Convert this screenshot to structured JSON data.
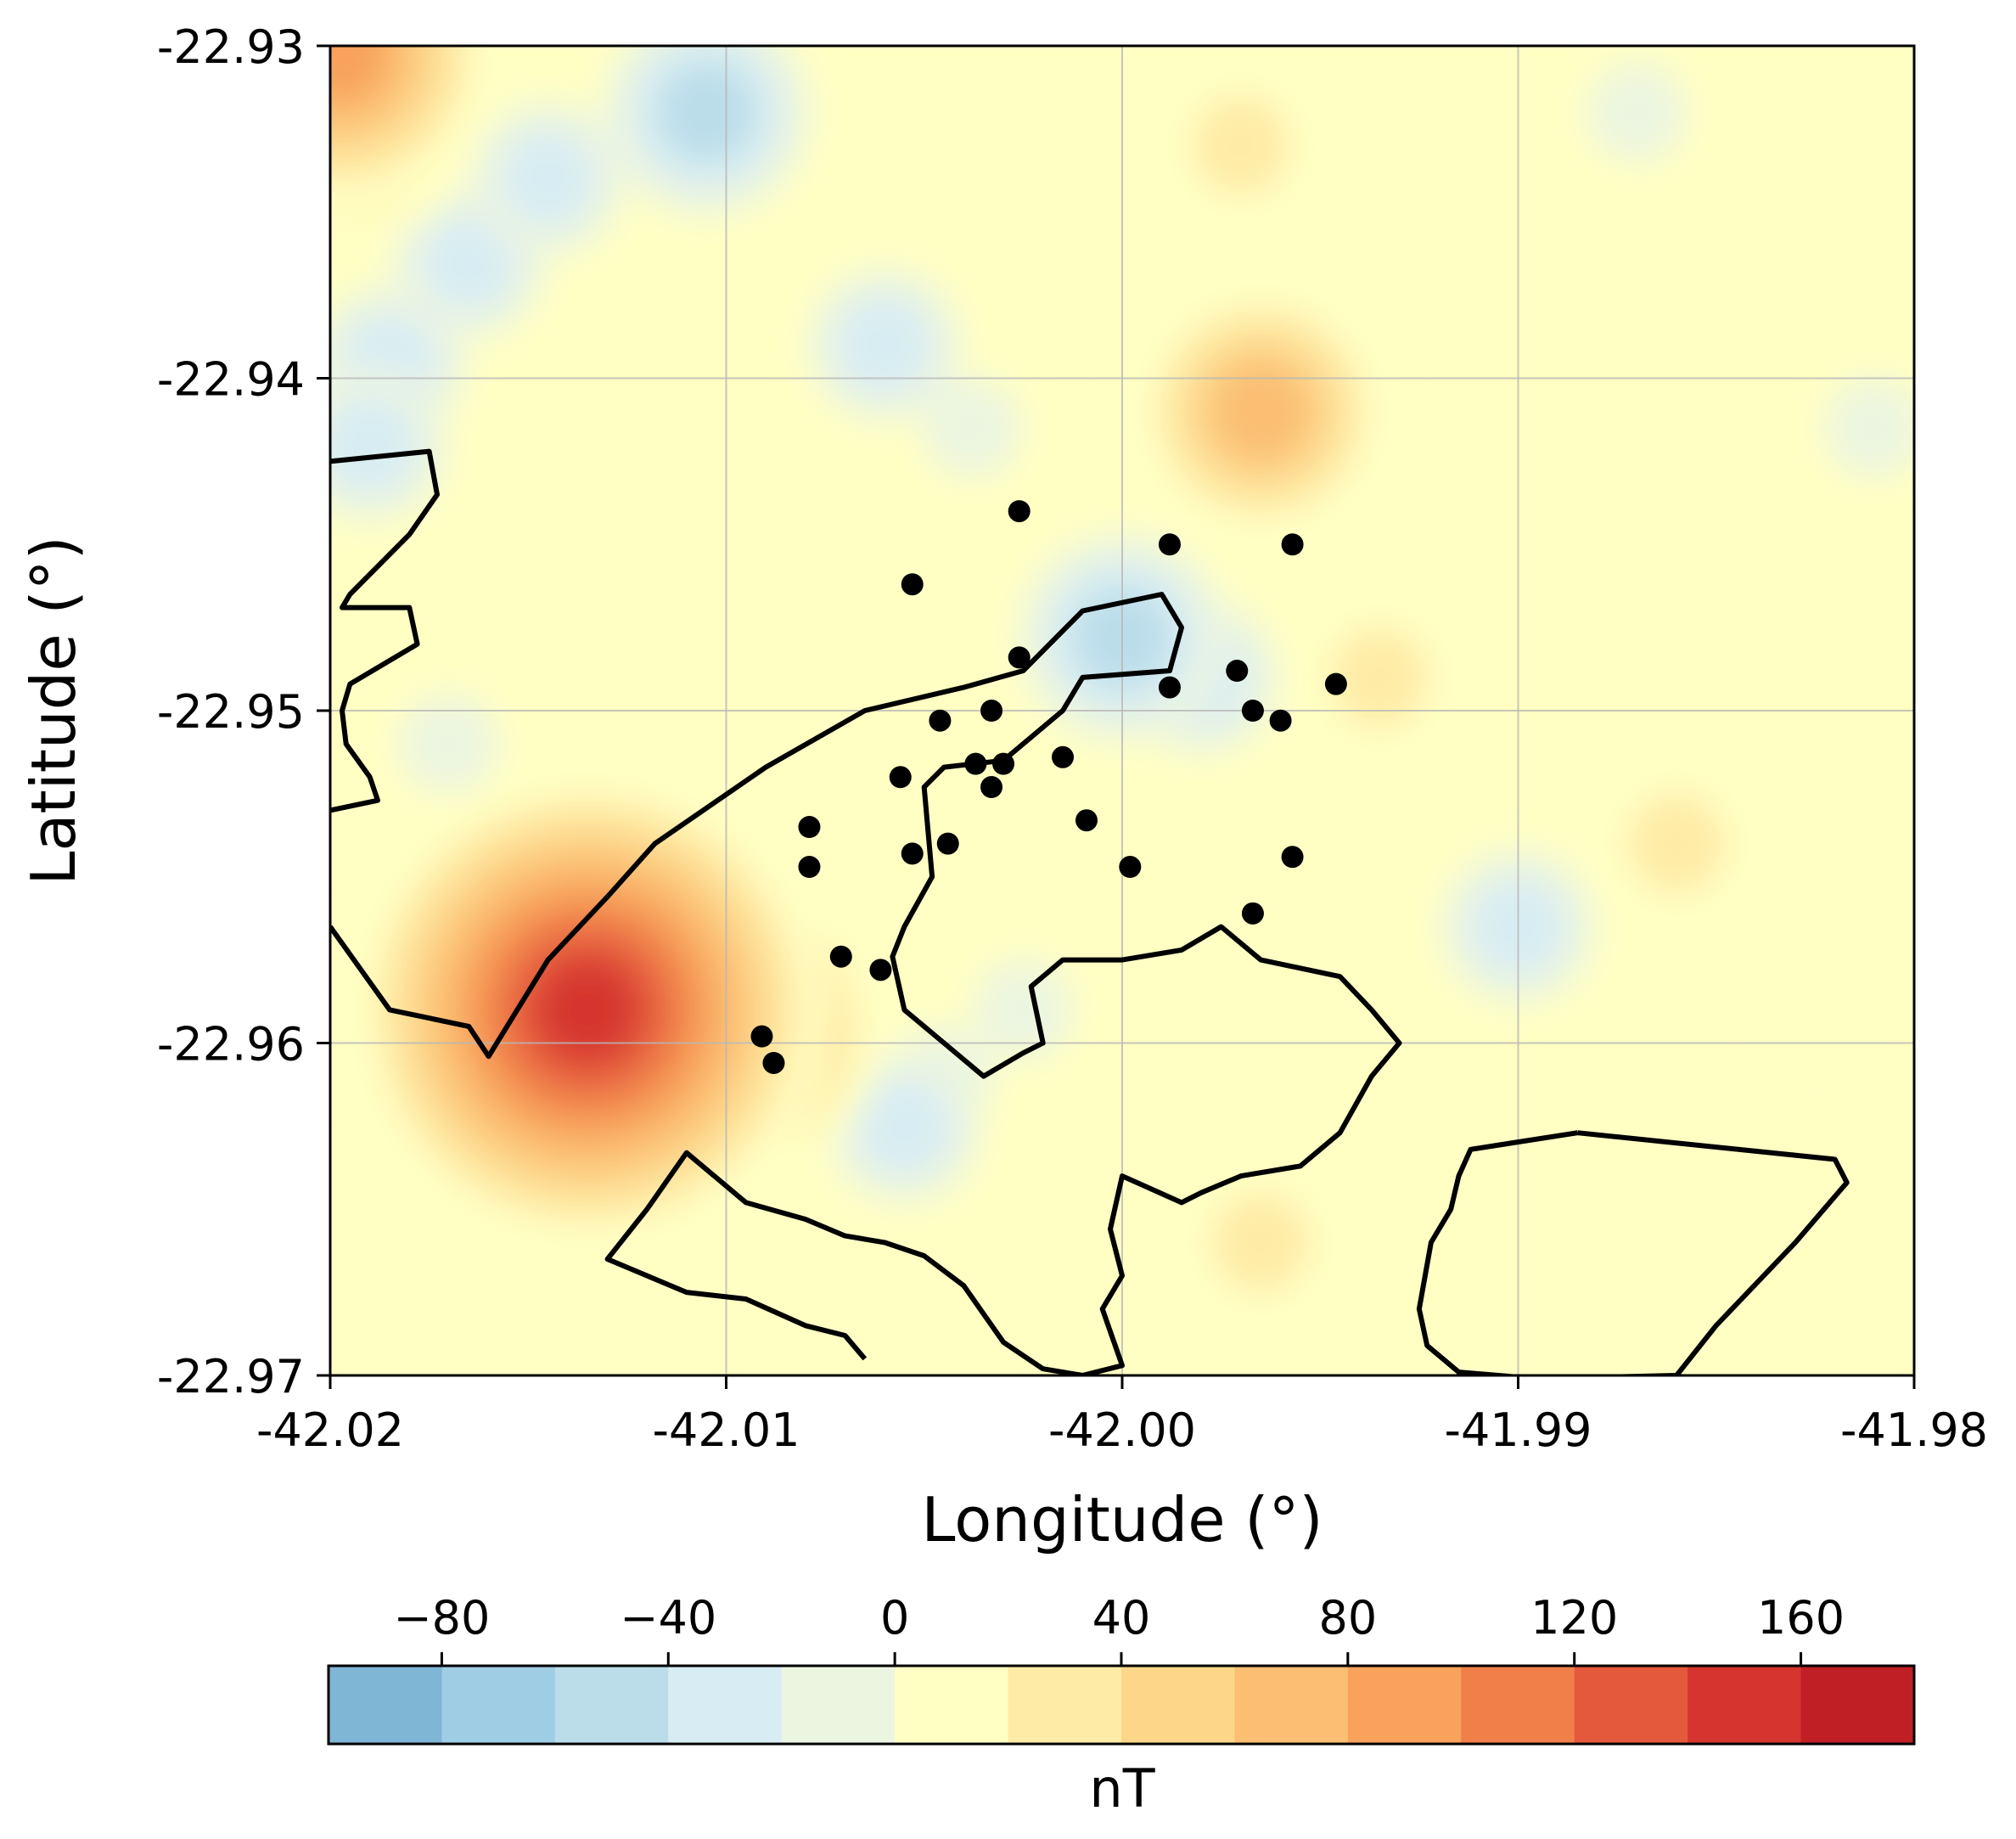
{
  "chart_data": {
    "type": "heatmap",
    "subtype": "filled-contour-map",
    "xlabel": "Longitude (°)",
    "ylabel": "Latitude (°)",
    "xlim": [
      -42.02,
      -41.98
    ],
    "ylim": [
      -22.97,
      -22.93
    ],
    "xticks": [
      -42.02,
      -42.01,
      -42.0,
      -41.99,
      -41.98
    ],
    "xtick_labels": [
      "-42.02",
      "-42.01",
      "-42.00",
      "-41.99",
      "-41.98"
    ],
    "yticks": [
      -22.93,
      -22.94,
      -22.95,
      -22.96,
      -22.97
    ],
    "ytick_labels": [
      "-22.93",
      "-22.94",
      "-22.95",
      "-22.96",
      "-22.97"
    ],
    "grid": true,
    "colorbar": {
      "label": "nT",
      "orientation": "horizontal",
      "placement": "bottom",
      "range": [
        -100,
        180
      ],
      "step": 20,
      "ticks": [
        -80,
        -40,
        0,
        40,
        80,
        120,
        160
      ],
      "tick_labels": [
        "−80",
        "−40",
        "0",
        "40",
        "80",
        "120",
        "160"
      ],
      "colors": [
        "#7fb5d5",
        "#9fcde3",
        "#badde9",
        "#d8edf3",
        "#ecf5e0",
        "#ffffc4",
        "#feeba6",
        "#fdd68a",
        "#fbbe72",
        "#f8a25c",
        "#f07f4a",
        "#e4593c",
        "#d5352e",
        "#c01f26"
      ]
    },
    "anomalies": [
      {
        "lon": -42.0198,
        "lat": -22.9302,
        "value": 110
      },
      {
        "lon": -42.0195,
        "lat": -22.932,
        "value": 80
      },
      {
        "lon": -42.0185,
        "lat": -22.9335,
        "value": 30
      },
      {
        "lon": -42.0135,
        "lat": -22.959,
        "value": 165
      },
      {
        "lon": -42.0118,
        "lat": -22.958,
        "value": 110
      },
      {
        "lon": -42.0143,
        "lat": -22.9565,
        "value": 60
      },
      {
        "lon": -42.017,
        "lat": -22.9575,
        "value": 35
      },
      {
        "lon": -42.01,
        "lat": -22.9595,
        "value": 100
      },
      {
        "lon": -42.0135,
        "lat": -22.964,
        "value": 25
      },
      {
        "lon": -41.9965,
        "lat": -22.941,
        "value": 80
      },
      {
        "lon": -41.9955,
        "lat": -22.939,
        "value": 50
      },
      {
        "lon": -41.997,
        "lat": -22.933,
        "value": 40
      },
      {
        "lon": -41.9935,
        "lat": -22.949,
        "value": 50
      },
      {
        "lon": -41.9965,
        "lat": -22.966,
        "value": 45
      },
      {
        "lon": -41.986,
        "lat": -22.954,
        "value": 40
      },
      {
        "lon": -41.9895,
        "lat": -22.9475,
        "value": 30
      },
      {
        "lon": -41.9825,
        "lat": -22.9615,
        "value": 25
      },
      {
        "lon": -42.011,
        "lat": -22.948,
        "value": 25
      },
      {
        "lon": -42.015,
        "lat": -22.967,
        "value": 25
      },
      {
        "lon": -41.995,
        "lat": -22.957,
        "value": 20
      },
      {
        "lon": -42.0145,
        "lat": -22.934,
        "value": -50
      },
      {
        "lon": -42.0105,
        "lat": -22.932,
        "value": -60
      },
      {
        "lon": -42.0165,
        "lat": -22.9365,
        "value": -45
      },
      {
        "lon": -42.0185,
        "lat": -22.9395,
        "value": -40
      },
      {
        "lon": -42.006,
        "lat": -22.939,
        "value": -45
      },
      {
        "lon": -42.0038,
        "lat": -22.9415,
        "value": -35
      },
      {
        "lon": -42.0,
        "lat": -22.9478,
        "value": -60
      },
      {
        "lon": -41.998,
        "lat": -22.949,
        "value": -40
      },
      {
        "lon": -42.017,
        "lat": -22.951,
        "value": -25
      },
      {
        "lon": -42.019,
        "lat": -22.942,
        "value": -45
      },
      {
        "lon": -42.0055,
        "lat": -22.9625,
        "value": -45
      },
      {
        "lon": -42.0045,
        "lat": -22.961,
        "value": -30
      },
      {
        "lon": -41.99,
        "lat": -22.9565,
        "value": -40
      },
      {
        "lon": -41.987,
        "lat": -22.932,
        "value": -25
      },
      {
        "lon": -42.0025,
        "lat": -22.959,
        "value": -25
      },
      {
        "lon": -41.981,
        "lat": -22.9415,
        "value": -25
      }
    ],
    "contour_lines": [
      [
        [
          -42.02,
          -22.9425
        ],
        [
          -42.0175,
          -22.9422
        ],
        [
          -42.0173,
          -22.9435
        ],
        [
          -42.018,
          -22.9447
        ],
        [
          -42.0195,
          -22.9465
        ],
        [
          -42.0197,
          -22.9469
        ],
        [
          -42.018,
          -22.9469
        ],
        [
          -42.0178,
          -22.948
        ],
        [
          -42.0195,
          -22.9492
        ],
        [
          -42.0197,
          -22.95
        ],
        [
          -42.0196,
          -22.951
        ],
        [
          -42.019,
          -22.952
        ],
        [
          -42.0188,
          -22.9527
        ],
        [
          -42.02,
          -22.953
        ]
      ],
      [
        [
          -42.02,
          -22.9565
        ],
        [
          -42.0185,
          -22.959
        ],
        [
          -42.0165,
          -22.9595
        ],
        [
          -42.016,
          -22.9604
        ],
        [
          -42.0145,
          -22.9575
        ],
        [
          -42.013,
          -22.9556
        ],
        [
          -42.0118,
          -22.954
        ],
        [
          -42.009,
          -22.9517
        ],
        [
          -42.0065,
          -22.95
        ],
        [
          -42.004,
          -22.9493
        ],
        [
          -42.0025,
          -22.9488
        ],
        [
          -42.001,
          -22.947
        ],
        [
          -41.999,
          -22.9465
        ],
        [
          -41.9985,
          -22.9475
        ],
        [
          -41.9988,
          -22.9488
        ],
        [
          -42.001,
          -22.949
        ],
        [
          -42.0015,
          -22.95
        ],
        [
          -42.003,
          -22.9515
        ],
        [
          -42.0045,
          -22.9517
        ],
        [
          -42.005,
          -22.9523
        ],
        [
          -42.0048,
          -22.955
        ],
        [
          -42.0055,
          -22.9565
        ],
        [
          -42.0058,
          -22.9574
        ],
        [
          -42.0055,
          -22.959
        ],
        [
          -42.0045,
          -22.96
        ],
        [
          -42.0035,
          -22.961
        ],
        [
          -42.0025,
          -22.9603
        ],
        [
          -42.002,
          -22.96
        ],
        [
          -42.0023,
          -22.9583
        ],
        [
          -42.0015,
          -22.9575
        ],
        [
          -42.0,
          -22.9575
        ],
        [
          -41.9985,
          -22.9572
        ],
        [
          -41.9975,
          -22.9565
        ],
        [
          -41.9965,
          -22.9575
        ],
        [
          -41.9945,
          -22.958
        ],
        [
          -41.9937,
          -22.959
        ],
        [
          -41.993,
          -22.96
        ],
        [
          -41.9937,
          -22.961
        ],
        [
          -41.9945,
          -22.9627
        ],
        [
          -41.9955,
          -22.9637
        ],
        [
          -41.997,
          -22.964
        ],
        [
          -41.998,
          -22.9645
        ],
        [
          -41.9985,
          -22.9648
        ],
        [
          -42.0,
          -22.964
        ],
        [
          -42.0003,
          -22.9656
        ],
        [
          -42.0,
          -22.967
        ],
        [
          -42.0005,
          -22.968
        ],
        [
          -42.0,
          -22.9697
        ],
        [
          -42.001,
          -22.97
        ],
        [
          -42.002,
          -22.9698
        ],
        [
          -42.003,
          -22.969
        ],
        [
          -42.004,
          -22.9673
        ],
        [
          -42.005,
          -22.9664
        ],
        [
          -42.006,
          -22.966
        ],
        [
          -42.007,
          -22.9658
        ],
        [
          -42.008,
          -22.9653
        ],
        [
          -42.0095,
          -22.9648
        ],
        [
          -42.011,
          -22.9633
        ],
        [
          -42.012,
          -22.965
        ],
        [
          -42.013,
          -22.9665
        ],
        [
          -42.011,
          -22.9675
        ],
        [
          -42.0095,
          -22.9677
        ],
        [
          -42.008,
          -22.9685
        ],
        [
          -42.007,
          -22.9688
        ],
        [
          -42.0065,
          -22.9695
        ]
      ],
      [
        [
          -41.9885,
          -22.9627
        ],
        [
          -41.982,
          -22.9635
        ],
        [
          -41.9817,
          -22.9642
        ],
        [
          -41.983,
          -22.966
        ],
        [
          -41.985,
          -22.9685
        ],
        [
          -41.986,
          -22.97
        ],
        [
          -41.9895,
          -22.9701
        ],
        [
          -41.9915,
          -22.9699
        ],
        [
          -41.9923,
          -22.9691
        ],
        [
          -41.9925,
          -22.968
        ],
        [
          -41.9922,
          -22.966
        ],
        [
          -41.9917,
          -22.965
        ],
        [
          -41.9915,
          -22.964
        ],
        [
          -41.9912,
          -22.9632
        ],
        [
          -41.9885,
          -22.9627
        ]
      ]
    ],
    "points": [
      [
        -42.0026,
        -22.944
      ],
      [
        -42.0053,
        -22.9462
      ],
      [
        -41.9988,
        -22.945
      ],
      [
        -41.9957,
        -22.945
      ],
      [
        -42.0026,
        -22.9484
      ],
      [
        -41.9971,
        -22.9488
      ],
      [
        -41.9988,
        -22.9493
      ],
      [
        -41.9946,
        -22.9492
      ],
      [
        -42.0033,
        -22.95
      ],
      [
        -42.0046,
        -22.9503
      ],
      [
        -41.9967,
        -22.95
      ],
      [
        -41.996,
        -22.9503
      ],
      [
        -42.0037,
        -22.9516
      ],
      [
        -42.003,
        -22.9516
      ],
      [
        -42.0015,
        -22.9514
      ],
      [
        -42.0056,
        -22.952
      ],
      [
        -42.0033,
        -22.9523
      ],
      [
        -42.0079,
        -22.9535
      ],
      [
        -42.0009,
        -22.9533
      ],
      [
        -42.0053,
        -22.9543
      ],
      [
        -42.0044,
        -22.954
      ],
      [
        -42.0079,
        -22.9547
      ],
      [
        -41.9998,
        -22.9547
      ],
      [
        -41.9957,
        -22.9544
      ],
      [
        -41.9967,
        -22.9561
      ],
      [
        -42.0071,
        -22.9574
      ],
      [
        -42.0061,
        -22.9578
      ],
      [
        -42.0091,
        -22.9598
      ],
      [
        -42.0088,
        -22.9606
      ]
    ]
  }
}
